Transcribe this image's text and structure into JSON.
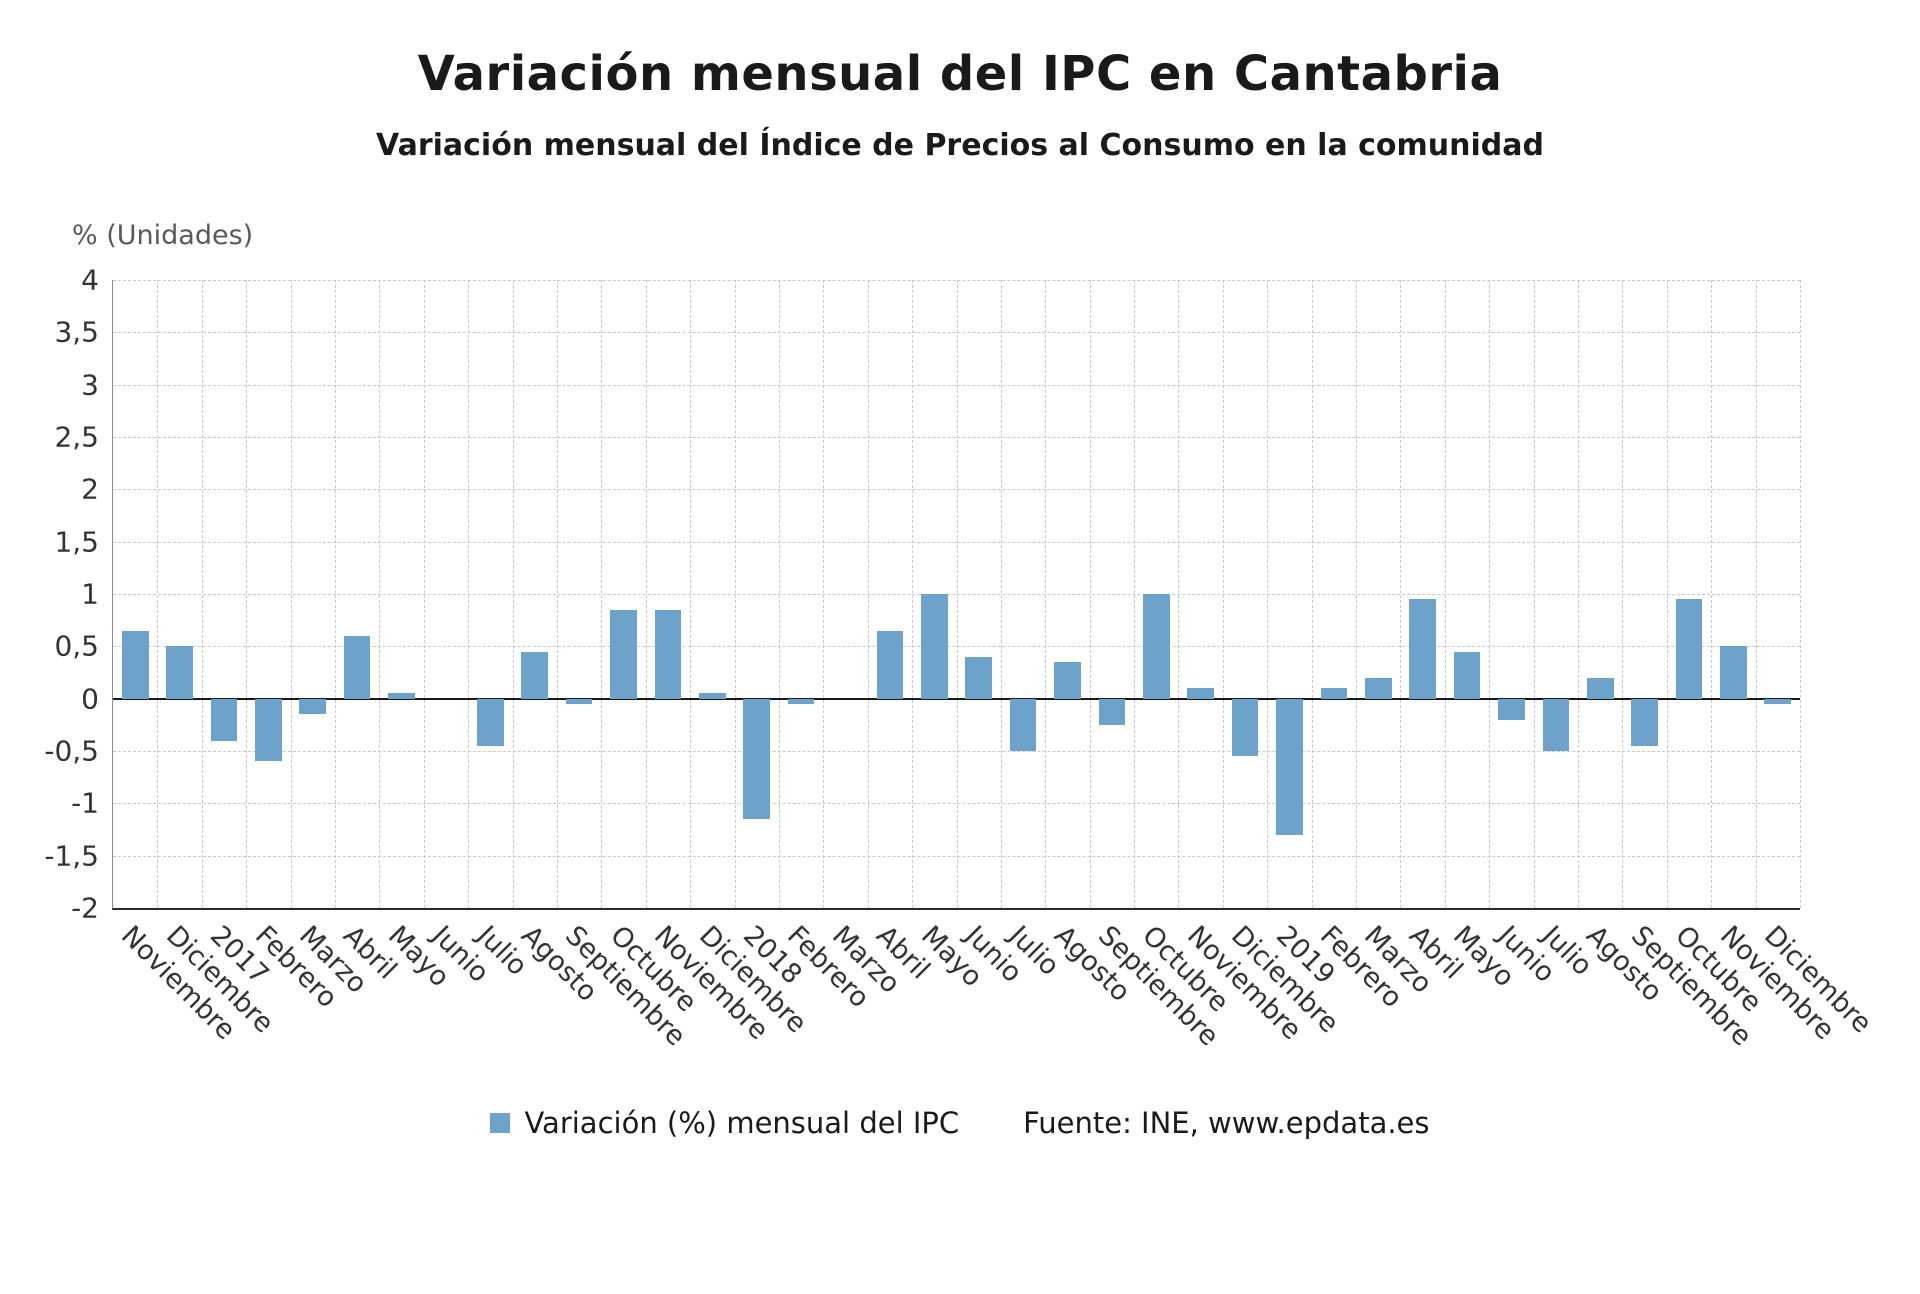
{
  "title": "Variación mensual del IPC en Cantabria",
  "subtitle": "Variación mensual del Índice de Precios al Consumo en la comunidad",
  "y_axis_unit": "% (Unidades)",
  "legend": {
    "series_label": "Variación (%) mensual del IPC",
    "source": "Fuente: INE, www.epdata.es"
  },
  "colors": {
    "bar": "#6da2cb",
    "grid": "#c9c9c9",
    "axis": "#2b2b2b",
    "zero_line": "#1a1a1a"
  },
  "chart_data": {
    "type": "bar",
    "title": "Variación mensual del IPC en Cantabria",
    "subtitle": "Variación mensual del Índice de Precios al Consumo en la comunidad",
    "ylabel": "% (Unidades)",
    "xlabel": "",
    "ylim": [
      -2,
      4
    ],
    "ytick_step": 0.5,
    "grid": "dashed",
    "legend_position": "bottom",
    "series_name": "Variación (%) mensual del IPC",
    "categories": [
      "Noviembre",
      "Diciembre",
      "2017",
      "Febrero",
      "Marzo",
      "Abril",
      "Mayo",
      "Junio",
      "Julio",
      "Agosto",
      "Septiembre",
      "Octubre",
      "Noviembre",
      "Diciembre",
      "2018",
      "Febrero",
      "Marzo",
      "Abril",
      "Mayo",
      "Junio",
      "Julio",
      "Agosto",
      "Septiembre",
      "Octubre",
      "Noviembre",
      "Diciembre",
      "2019",
      "Febrero",
      "Marzo",
      "Abril",
      "Mayo",
      "Junio",
      "Julio",
      "Agosto",
      "Septiembre",
      "Octubre",
      "Noviembre",
      "Diciembre"
    ],
    "values": [
      0.65,
      0.5,
      -0.4,
      -0.6,
      -0.15,
      0.6,
      0.05,
      0,
      -0.45,
      0.45,
      -0.05,
      0.85,
      0.85,
      0.05,
      -1.15,
      -0.05,
      0,
      0.65,
      1.0,
      0.4,
      -0.5,
      0.35,
      -0.25,
      1.0,
      0.1,
      -0.55,
      -1.3,
      0.1,
      0.2,
      0.95,
      0.45,
      -0.2,
      -0.5,
      0.2,
      -0.45,
      0.95,
      0.5,
      -0.05
    ]
  }
}
